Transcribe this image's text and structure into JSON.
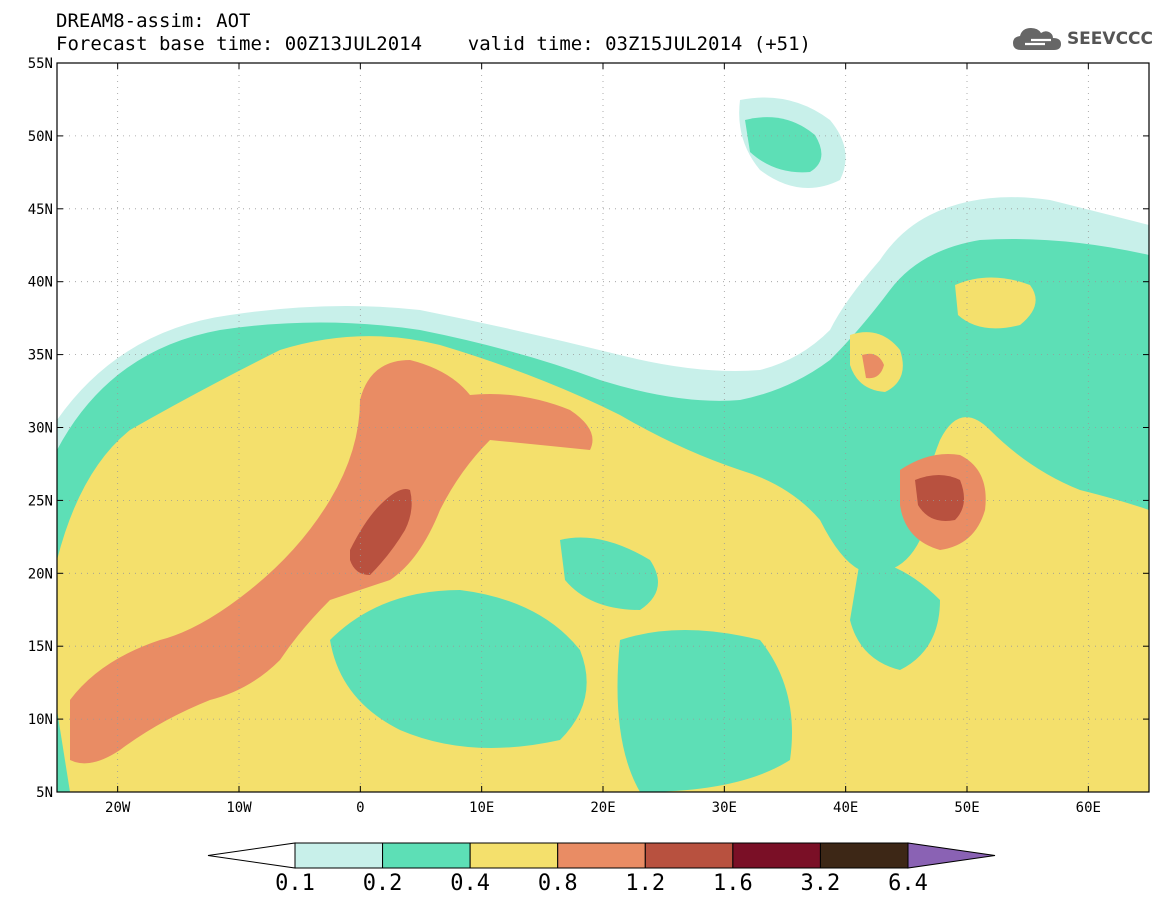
{
  "header": {
    "line1": "DREAM8-assim: AOT",
    "line2": "Forecast base time: 00Z13JUL2014    valid time: 03Z15JUL2014 (+51)"
  },
  "logo": {
    "text": "SEEVCCC",
    "icon": "cloud-icon"
  },
  "map": {
    "lat_labels": [
      "55N",
      "50N",
      "45N",
      "40N",
      "35N",
      "30N",
      "25N",
      "20N",
      "15N",
      "10N",
      "5N"
    ],
    "lon_labels": [
      "20W",
      "10W",
      "0",
      "10E",
      "20E",
      "30E",
      "40E",
      "50E",
      "60E"
    ],
    "lat_range": [
      5,
      55
    ],
    "lon_range": [
      -25,
      65
    ],
    "grid": "dotted"
  },
  "colorbar": {
    "labels": [
      "0.1",
      "0.2",
      "0.4",
      "0.8",
      "1.2",
      "1.6",
      "3.2",
      "6.4"
    ],
    "colors": [
      "#c8f0ea",
      "#5ddfb6",
      "#f4e06c",
      "#e98c64",
      "#b8513f",
      "#7a0f26",
      "#3d2716",
      "#8a62b4"
    ]
  }
}
